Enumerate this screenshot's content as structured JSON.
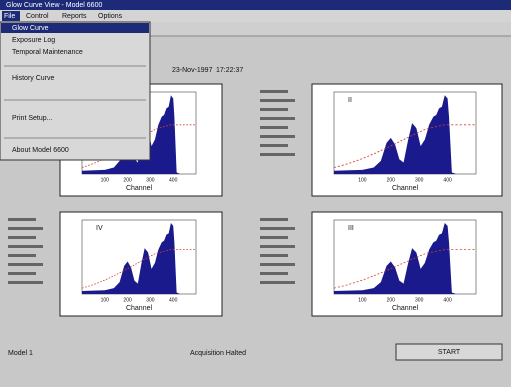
{
  "window": {
    "title": "Glow Curve View - Model 6600"
  },
  "menu": [
    "File",
    "Control",
    "Reports",
    "Options"
  ],
  "dropdown": [
    "Glow Curve",
    "Exposure Log",
    "Temporal Maintenance",
    "History Curve",
    "Print Setup...",
    "About Model 6600"
  ],
  "header": {
    "date": "23-Nov-1997",
    "time": "17:22:37"
  },
  "panels": [
    {
      "label": "I",
      "x_label": "Channel",
      "x_ticks": [
        "100",
        "200",
        "300",
        "400"
      ]
    },
    {
      "label": "II",
      "x_label": "Channel",
      "x_ticks": [
        "100",
        "200",
        "300",
        "400"
      ]
    },
    {
      "label": "IV",
      "x_label": "Channel",
      "x_ticks": [
        "100",
        "200",
        "300",
        "400"
      ]
    },
    {
      "label": "III",
      "x_label": "Channel",
      "x_ticks": [
        "100",
        "200",
        "300",
        "400"
      ]
    }
  ],
  "status": {
    "left": "Model 1",
    "center": "Acquisition Halted"
  },
  "button": "START"
}
